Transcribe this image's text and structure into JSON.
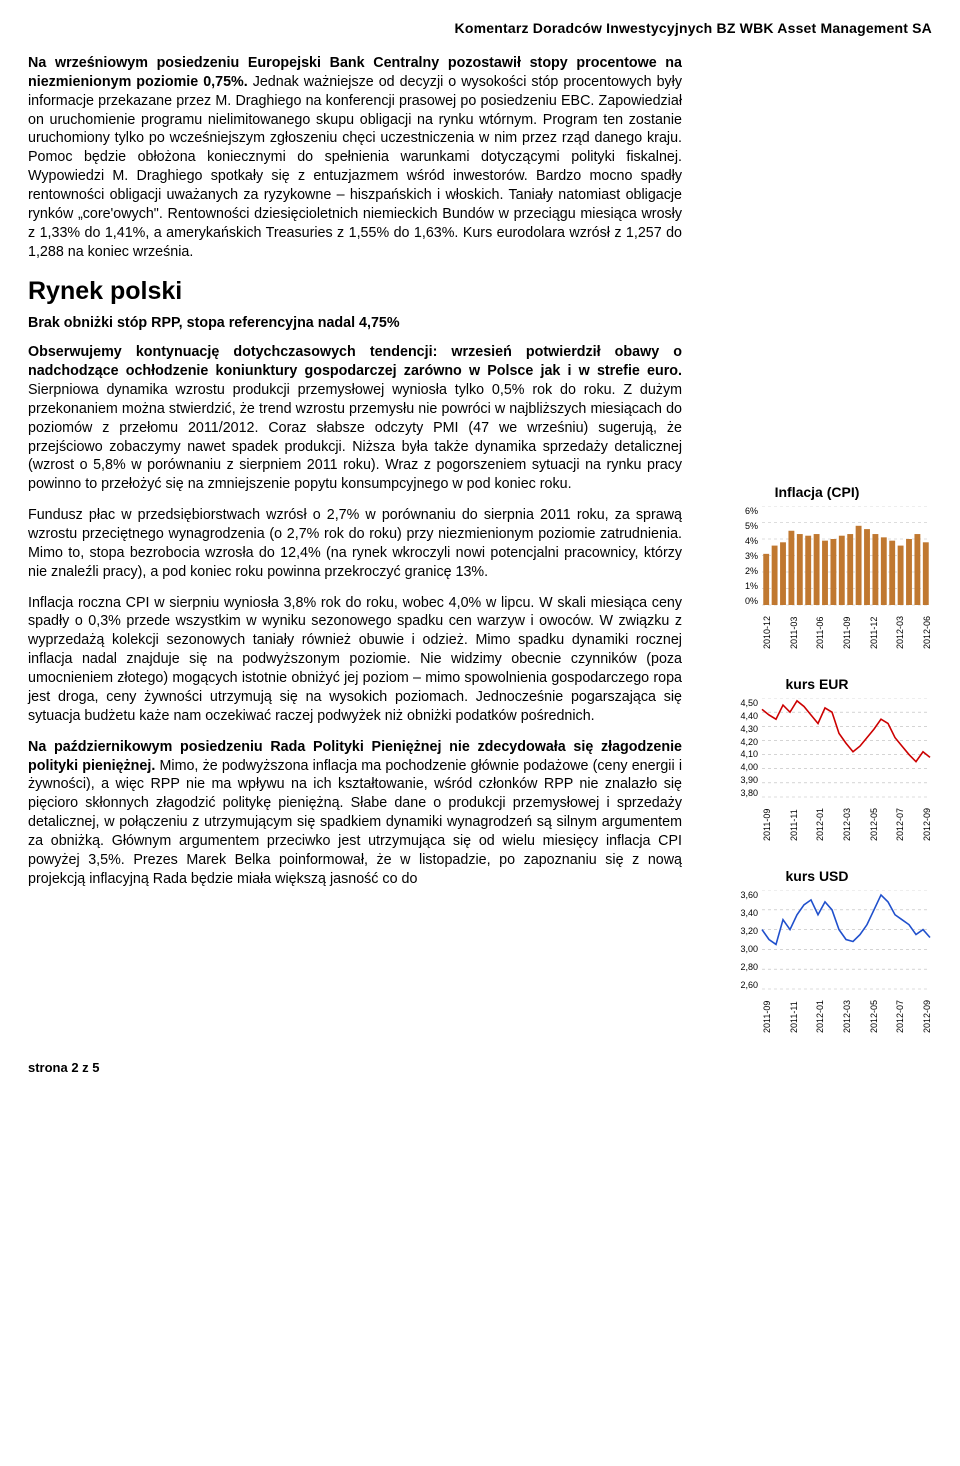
{
  "header": "Komentarz Doradców Inwestycyjnych BZ WBK  Asset Management SA",
  "p1_bold": "Na wrześniowym posiedzeniu Europejski Bank Centralny pozostawił stopy procentowe na niezmienionym poziomie 0,75%.",
  "p1_rest": " Jednak ważniejsze od decyzji o wysokości stóp procentowych były informacje przekazane przez M. Draghiego na konferencji prasowej po posiedzeniu EBC. Zapowiedział on uruchomienie programu nielimitowanego skupu obligacji na rynku wtórnym. Program ten zostanie uruchomiony tylko po wcześniejszym zgłoszeniu chęci uczestniczenia w nim przez rząd danego kraju. Pomoc będzie obłożona koniecznymi do spełnienia warunkami dotyczącymi polityki fiskalnej. Wypowiedzi M. Draghiego spotkały się z entuzjazmem wśród inwestorów. Bardzo mocno spadły rentowności obligacji uważanych za ryzykowne – hiszpańskich i włoskich. Taniały natomiast obligacje rynków „core'owych\". Rentowności dziesięcioletnich niemieckich Bundów w przeciągu miesiąca wrosły z 1,33% do 1,41%, a amerykańskich Treasuries z 1,55% do 1,63%. Kurs eurodolara wzrósł z 1,257 do 1,288 na koniec września.",
  "section_title": "Rynek polski",
  "sub_heading": "Brak obniżki stóp RPP, stopa referencyjna nadal 4,75%",
  "p2_bold": "Obserwujemy kontynuację dotychczasowych tendencji: wrzesień potwierdził obawy o nadchodzące ochłodzenie koniunktury gospodarczej zarówno w Polsce jak i w strefie euro.",
  "p2_rest": " Sierpniowa dynamika wzrostu produkcji przemysłowej wyniosła tylko 0,5% rok do roku. Z dużym przekonaniem można stwierdzić, że trend wzrostu przemysłu nie powróci w najbliższych miesiącach do poziomów z przełomu 2011/2012. Coraz słabsze odczyty PMI (47 we wrześniu) sugerują, że przejściowo zobaczymy nawet spadek produkcji. Niższa była także dynamika sprzedaży detalicznej (wzrost o 5,8% w porównaniu z sierpniem 2011 roku). Wraz z pogorszeniem sytuacji na rynku pracy powinno to przełożyć się na zmniejszenie popytu konsumpcyjnego w pod koniec roku.",
  "p3": "Fundusz płac w przedsiębiorstwach wzrósł o 2,7% w porównaniu do sierpnia 2011 roku, za sprawą wzrostu przeciętnego wynagrodzenia (o 2,7% rok do roku) przy niezmienionym poziomie zatrudnienia. Mimo to, stopa bezrobocia wzrosła do 12,4% (na rynek wkroczyli nowi potencjalni pracownicy, którzy nie znaleźli pracy), a pod koniec roku powinna przekroczyć granicę 13%.",
  "p4": "Inflacja roczna CPI w sierpniu wyniosła 3,8% rok do roku, wobec 4,0% w lipcu. W skali miesiąca ceny spadły o 0,3% przede wszystkim w wyniku sezonowego spadku cen warzyw i owoców. W związku z wyprzedażą kolekcji sezonowych taniały również obuwie i odzież. Mimo spadku dynamiki rocznej inflacja nadal znajduje się na podwyższonym poziomie. Nie widzimy obecnie czynników (poza umocnieniem złotego) mogących istotnie obniżyć jej poziom – mimo spowolnienia gospodarczego ropa jest droga, ceny żywności utrzymują się na wysokich poziomach. Jednocześnie pogarszająca się sytuacja budżetu każe nam oczekiwać raczej podwyżek niż obniżki podatków pośrednich.",
  "p5_bold": "Na październikowym posiedzeniu Rada Polityki Pieniężnej nie zdecydowała się złagodzenie polityki pieniężnej.",
  "p5_rest": " Mimo, że podwyższona inflacja ma pochodzenie głównie podażowe (ceny energii i żywności), a więc RPP nie ma wpływu na ich kształtowanie, wśród członków RPP nie znalazło się pięcioro skłonnych złagodzić politykę pieniężną. Słabe dane o produkcji przemysłowej i sprzedaży detalicznej, w połączeniu z utrzymującym się spadkiem dynamiki wynagrodzeń są silnym argumentem za obniżką. Głównym argumentem przeciwko jest utrzymująca się od wielu miesięcy inflacja CPI powyżej 3,5%. Prezes Marek Belka poinformował, że w listopadzie, po zapoznaniu się z nową projekcją inflacyjną Rada będzie miała większą jasność co do",
  "footer": "strona 2 z 5",
  "cpi_chart": {
    "title": "Inflacja (CPI)",
    "type": "bar",
    "xlabels": [
      "2010-12",
      "2011-03",
      "2011-06",
      "2011-09",
      "2011-12",
      "2012-03",
      "2012-06"
    ],
    "yticks": [
      "6%",
      "5%",
      "4%",
      "3%",
      "2%",
      "1%",
      "0%"
    ],
    "values": [
      3.1,
      3.6,
      3.8,
      4.5,
      4.3,
      4.2,
      4.3,
      3.9,
      4.0,
      4.2,
      4.3,
      4.8,
      4.6,
      4.3,
      4.1,
      3.9,
      3.6,
      4.0,
      4.3,
      3.8
    ],
    "bar_color": "#c07830",
    "ylim": [
      0,
      6
    ],
    "grid_color": "#bbbbbb"
  },
  "eur_chart": {
    "title": "kurs EUR",
    "type": "line",
    "xlabels": [
      "2011-09",
      "2011-11",
      "2012-01",
      "2012-03",
      "2012-05",
      "2012-07",
      "2012-09"
    ],
    "yticks": [
      "4,50",
      "4,40",
      "4,30",
      "4,20",
      "4,10",
      "4,00",
      "3,90",
      "3,80"
    ],
    "ylim": [
      3.8,
      4.5
    ],
    "line_color": "#cc0000",
    "grid_color": "#bbbbbb",
    "points": [
      4.42,
      4.38,
      4.35,
      4.45,
      4.4,
      4.48,
      4.44,
      4.38,
      4.32,
      4.43,
      4.4,
      4.25,
      4.18,
      4.12,
      4.16,
      4.22,
      4.28,
      4.35,
      4.32,
      4.22,
      4.16,
      4.1,
      4.05,
      4.12,
      4.08
    ]
  },
  "usd_chart": {
    "title": "kurs USD",
    "type": "line",
    "xlabels": [
      "2011-09",
      "2011-11",
      "2012-01",
      "2012-03",
      "2012-05",
      "2012-07",
      "2012-09"
    ],
    "yticks": [
      "3,60",
      "3,40",
      "3,20",
      "3,00",
      "2,80",
      "2,60"
    ],
    "ylim": [
      2.6,
      3.6
    ],
    "line_color": "#2050cc",
    "grid_color": "#bbbbbb",
    "points": [
      3.2,
      3.1,
      3.05,
      3.3,
      3.2,
      3.35,
      3.45,
      3.5,
      3.35,
      3.48,
      3.4,
      3.2,
      3.1,
      3.08,
      3.15,
      3.25,
      3.4,
      3.55,
      3.48,
      3.35,
      3.3,
      3.25,
      3.15,
      3.2,
      3.12
    ]
  }
}
